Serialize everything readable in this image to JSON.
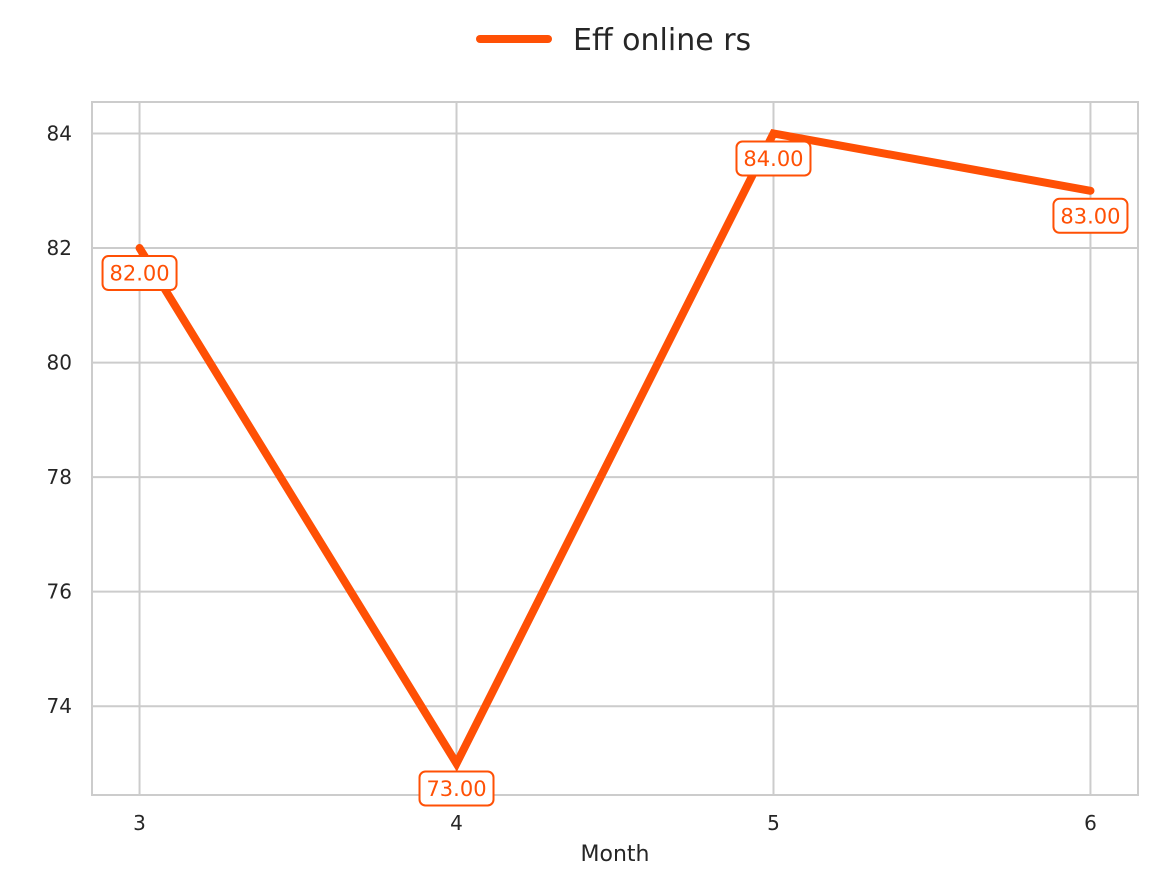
{
  "chart_data": {
    "type": "line",
    "title": "",
    "xlabel": "Month",
    "ylabel": "",
    "x": [
      3,
      4,
      5,
      6
    ],
    "x_ticks": [
      "3",
      "4",
      "5",
      "6"
    ],
    "y_ticks": [
      "74",
      "76",
      "78",
      "80",
      "82",
      "84"
    ],
    "ylim": [
      72.45,
      84.55
    ],
    "xlim": [
      2.85,
      6.15
    ],
    "grid": true,
    "legend_position": "top-center",
    "series": [
      {
        "name": "Eff online rs",
        "values": [
          82,
          73,
          84,
          83
        ],
        "labels": [
          "82.00",
          "73.00",
          "84.00",
          "83.00"
        ],
        "color": "#ff5005"
      }
    ]
  }
}
